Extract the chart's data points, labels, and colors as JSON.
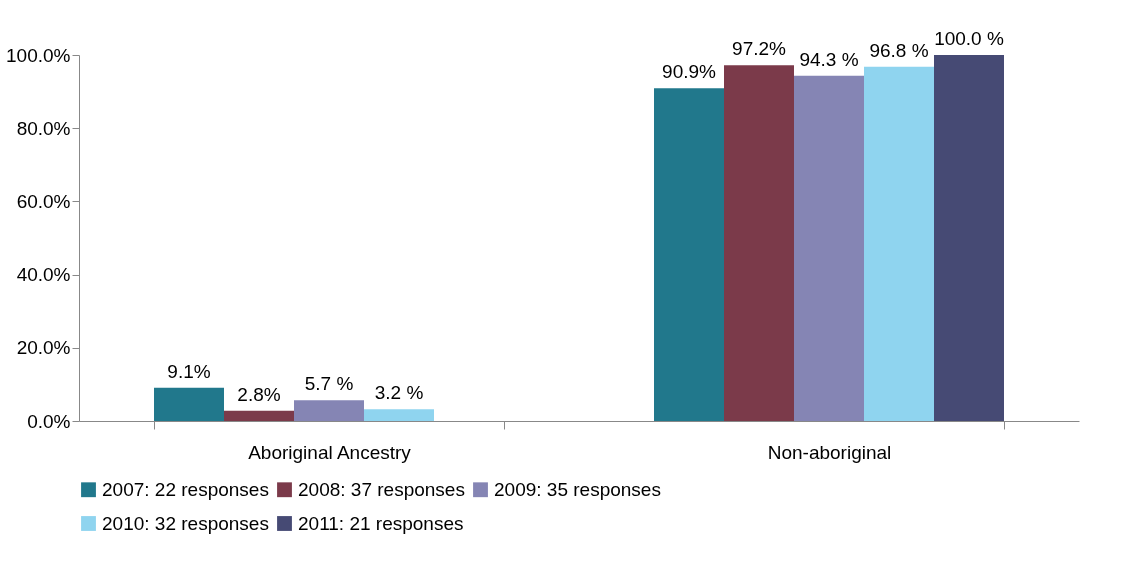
{
  "chart_data": {
    "type": "bar",
    "categories": [
      "Aboriginal Ancestry",
      "Non-aboriginal"
    ],
    "ylim": [
      0,
      100
    ],
    "yticks": [
      {
        "value": 0,
        "label": "0.0%"
      },
      {
        "value": 20,
        "label": "20.0%"
      },
      {
        "value": 40,
        "label": "40.0%"
      },
      {
        "value": 60,
        "label": "60.0%"
      },
      {
        "value": 80,
        "label": "80.0%"
      },
      {
        "value": 100,
        "label": "100.0%"
      }
    ],
    "grid": false,
    "legend": "bottom",
    "series": [
      {
        "name": "2007: 22 responses",
        "color": "#21788c",
        "values": [
          9.1,
          90.9
        ],
        "value_labels": [
          "9.1%",
          "90.9%"
        ]
      },
      {
        "name": "2008: 37 responses",
        "color": "#7b3a4a",
        "values": [
          2.8,
          97.2
        ],
        "value_labels": [
          "2.8%",
          "97.2%"
        ]
      },
      {
        "name": "2009: 35 responses",
        "color": "#8585b4",
        "values": [
          5.7,
          94.3
        ],
        "value_labels": [
          "5.7 %",
          "94.3 %"
        ]
      },
      {
        "name": "2010: 32 responses",
        "color": "#8fd4ef",
        "values": [
          3.2,
          96.8
        ],
        "value_labels": [
          "3.2 %",
          "96.8 %"
        ]
      },
      {
        "name": "2011: 21 responses",
        "color": "#464a74",
        "values": [
          null,
          100.0
        ],
        "value_labels": [
          null,
          "100.0 %"
        ]
      }
    ]
  }
}
